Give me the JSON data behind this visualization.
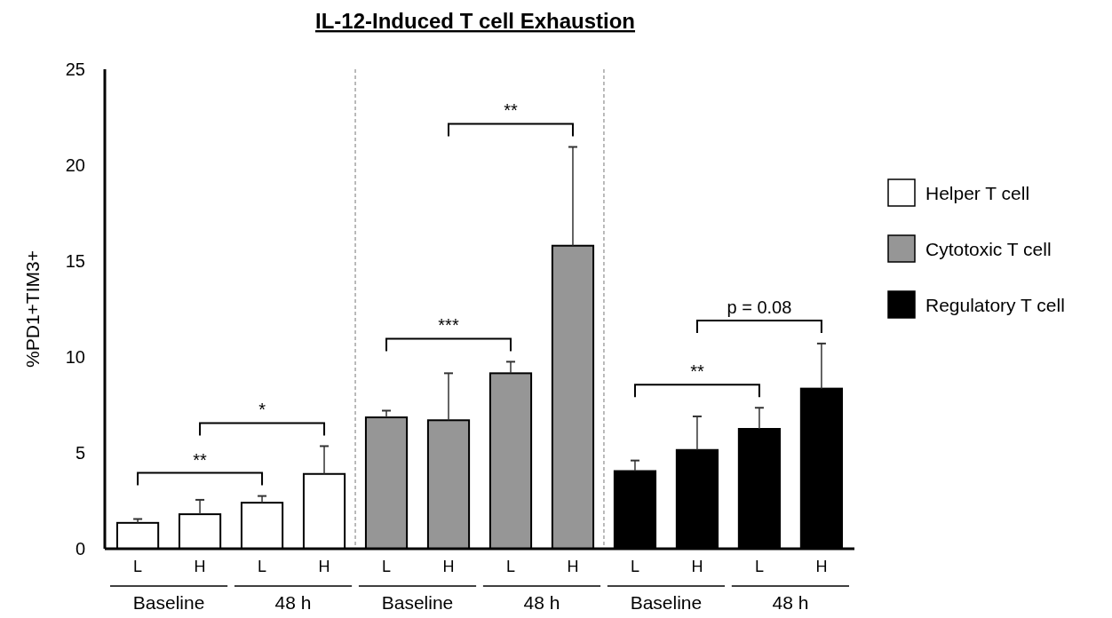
{
  "chart_data": {
    "type": "bar",
    "title": "IL-12-Induced T cell Exhaustion",
    "ylabel": "%PD1+TIM3+",
    "categories": [
      "L",
      "H",
      "L",
      "H",
      "L",
      "H",
      "L",
      "H",
      "L",
      "H",
      "L",
      "H"
    ],
    "series": [
      {
        "name": "Helper T cell",
        "color": "#ffffff",
        "values": [
          1.35,
          1.8,
          2.4,
          3.9,
          null,
          null,
          null,
          null,
          null,
          null,
          null,
          null
        ],
        "errors": [
          0.2,
          0.75,
          0.35,
          1.45,
          null,
          null,
          null,
          null,
          null,
          null,
          null,
          null
        ]
      },
      {
        "name": "Cytotoxic T cell",
        "color": "#969696",
        "values": [
          null,
          null,
          null,
          null,
          6.85,
          6.7,
          9.15,
          15.8,
          null,
          null,
          null,
          null
        ],
        "errors": [
          null,
          null,
          null,
          null,
          0.35,
          2.45,
          0.6,
          5.15,
          null,
          null,
          null,
          null
        ]
      },
      {
        "name": "Regulatory T cell",
        "color": "#000000",
        "values": [
          null,
          null,
          null,
          null,
          null,
          null,
          null,
          null,
          4.05,
          5.15,
          6.25,
          8.35
        ],
        "errors": [
          null,
          null,
          null,
          null,
          null,
          null,
          null,
          null,
          0.55,
          1.75,
          1.1,
          2.35
        ]
      }
    ],
    "annotations": [
      "Baseline",
      "48 h",
      "Baseline",
      "48 h",
      "Baseline",
      "48 h",
      "**",
      "*",
      "***",
      "**",
      "**",
      "p = 0.08"
    ],
    "ylim": [
      0,
      25
    ],
    "yticks": [
      0,
      5,
      10,
      15,
      20,
      25
    ],
    "grid": false,
    "legend": "right"
  }
}
